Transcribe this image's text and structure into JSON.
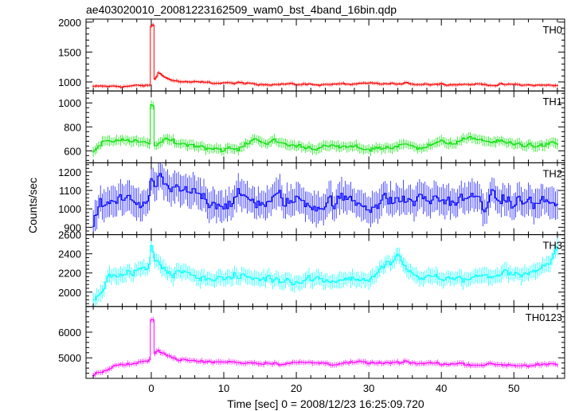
{
  "figure": {
    "title": "ae403020010_20081223162509_wam0_bst_4band_16bin.qdp",
    "ylabel": "Counts/sec",
    "xlabel": "Time [sec] 0 = 2008/12/23 16:25:09.720"
  },
  "chart_data": {
    "type": "line",
    "title": "ae403020010_20081223162509_wam0_bst_4band_16bin.qdp",
    "xlabel": "Time [sec] 0 = 2008/12/23 16:25:09.720",
    "ylabel": "Counts/sec",
    "xlim": [
      -9,
      57
    ],
    "xticks": [
      0,
      10,
      20,
      30,
      40,
      50
    ],
    "x_start": -8,
    "x_end": 56,
    "bin_width": 0.25,
    "grid": false,
    "panels": [
      {
        "name": "TH0",
        "color": "#ff0000",
        "ylim": [
          850,
          2050
        ],
        "yticks": [
          1000,
          1500,
          2000
        ],
        "baseline": 960,
        "noise": 25,
        "spike_peak": 2000,
        "anchors": [
          [
            -8,
            920
          ],
          [
            0,
            940
          ],
          [
            0.5,
            1050
          ],
          [
            1,
            1150
          ],
          [
            3,
            1020
          ],
          [
            6,
            990
          ],
          [
            20,
            960
          ],
          [
            40,
            970
          ],
          [
            56,
            940
          ]
        ]
      },
      {
        "name": "TH1",
        "color": "#00e000",
        "ylim": [
          500,
          1100
        ],
        "yticks": [
          600,
          800,
          1000
        ],
        "baseline": 650,
        "noise": 35,
        "spike_peak": 1000,
        "anchors": [
          [
            -8,
            590
          ],
          [
            -6,
            680
          ],
          [
            -4,
            700
          ],
          [
            0,
            640
          ],
          [
            2,
            680
          ],
          [
            10,
            620
          ],
          [
            12,
            600
          ],
          [
            14,
            700
          ],
          [
            20,
            640
          ],
          [
            30,
            620
          ],
          [
            40,
            660
          ],
          [
            45,
            700
          ],
          [
            50,
            650
          ],
          [
            56,
            650
          ]
        ]
      },
      {
        "name": "TH2",
        "color": "#0000ff",
        "ylim": [
          860,
          1250
        ],
        "yticks": [
          900,
          1000,
          1100,
          1200
        ],
        "baseline": 1030,
        "noise": 70,
        "spike_peak": 1200,
        "anchors": [
          [
            -8,
            900
          ],
          [
            -7,
            1020
          ],
          [
            0,
            1050
          ],
          [
            1,
            1150
          ],
          [
            3,
            1080
          ],
          [
            10,
            1050
          ],
          [
            20,
            1040
          ],
          [
            30,
            1040
          ],
          [
            40,
            1050
          ],
          [
            56,
            1030
          ]
        ]
      },
      {
        "name": "TH3",
        "color": "#00ffff",
        "ylim": [
          1850,
          2600
        ],
        "yticks": [
          2000,
          2200,
          2400,
          2600
        ],
        "baseline": 2150,
        "noise": 70,
        "spike_peak": 2520,
        "anchors": [
          [
            -8,
            1950
          ],
          [
            -6,
            2150
          ],
          [
            0,
            2250
          ],
          [
            1,
            2300
          ],
          [
            3,
            2200
          ],
          [
            10,
            2150
          ],
          [
            20,
            2140
          ],
          [
            30,
            2140
          ],
          [
            33,
            2300
          ],
          [
            34,
            2380
          ],
          [
            36,
            2150
          ],
          [
            45,
            2150
          ],
          [
            55,
            2250
          ],
          [
            56,
            2450
          ]
        ]
      },
      {
        "name": "TH0123",
        "color": "#ff00ff",
        "ylim": [
          4200,
          7000
        ],
        "yticks": [
          5000,
          6000
        ],
        "baseline": 4800,
        "noise": 90,
        "spike_peak": 6800,
        "anchors": [
          [
            -8,
            4300
          ],
          [
            -5,
            4700
          ],
          [
            0,
            4850
          ],
          [
            0.5,
            5200
          ],
          [
            1,
            5350
          ],
          [
            3,
            5000
          ],
          [
            6,
            4850
          ],
          [
            20,
            4800
          ],
          [
            40,
            4780
          ],
          [
            56,
            4700
          ]
        ]
      }
    ]
  }
}
